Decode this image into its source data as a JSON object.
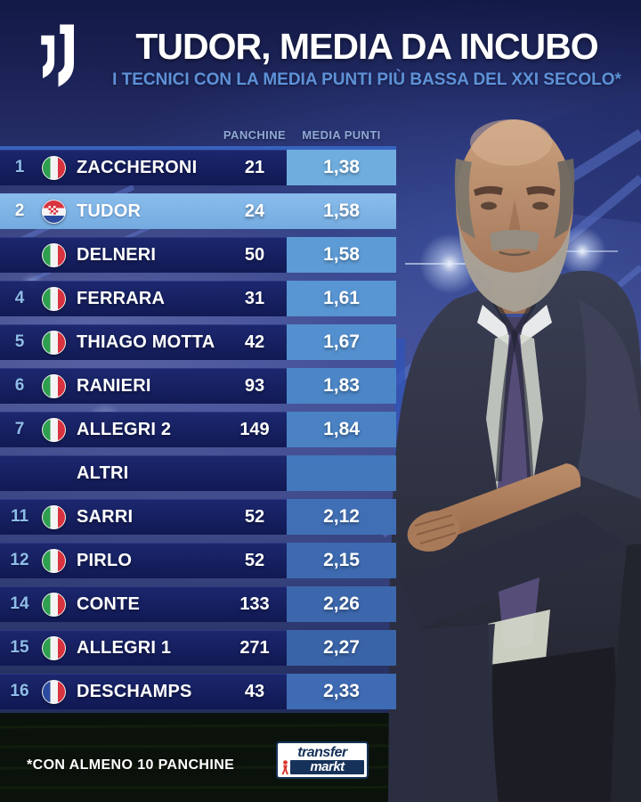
{
  "header": {
    "title": "TUDOR, MEDIA DA INCUBO",
    "subtitle": "I TECNICI CON LA MEDIA PUNTI PIÙ BASSA DEL XXI SECOLO*",
    "club_logo": "juventus"
  },
  "table": {
    "columns": {
      "panchine": "PANCHINE",
      "media": "MEDIA PUNTI"
    },
    "rows": [
      {
        "rank": "1",
        "flag": "it",
        "name": "ZACCHERONI",
        "panchine": "21",
        "media": "1,38",
        "highlight": false,
        "strip": "#6FADDE"
      },
      {
        "rank": "2",
        "flag": "hr",
        "name": "TUDOR",
        "panchine": "24",
        "media": "1,58",
        "highlight": true,
        "strip": "#7DB3E6"
      },
      {
        "rank": "",
        "flag": "it",
        "name": "DELNERI",
        "panchine": "50",
        "media": "1,58",
        "highlight": false,
        "strip": "#5D9BD6"
      },
      {
        "rank": "4",
        "flag": "it",
        "name": "FERRARA",
        "panchine": "31",
        "media": "1,61",
        "highlight": false,
        "strip": "#5895D3"
      },
      {
        "rank": "5",
        "flag": "it",
        "name": "THIAGO MOTTA",
        "panchine": "42",
        "media": "1,67",
        "highlight": false,
        "strip": "#5490CF"
      },
      {
        "rank": "6",
        "flag": "it",
        "name": "RANIERI",
        "panchine": "93",
        "media": "1,83",
        "highlight": false,
        "strip": "#4C86C7"
      },
      {
        "rank": "7",
        "flag": "it",
        "name": "ALLEGRI 2",
        "panchine": "149",
        "media": "1,84",
        "highlight": false,
        "strip": "#4A82C4"
      },
      {
        "rank": "",
        "flag": null,
        "name": "ALTRI",
        "panchine": "",
        "media": "",
        "highlight": false,
        "separator": true,
        "strip": "#4478BD"
      },
      {
        "rank": "11",
        "flag": "it",
        "name": "SARRI",
        "panchine": "52",
        "media": "2,12",
        "highlight": false,
        "strip": "#416FB6"
      },
      {
        "rank": "12",
        "flag": "it",
        "name": "PIRLO",
        "panchine": "52",
        "media": "2,15",
        "highlight": false,
        "strip": "#3D6AB0"
      },
      {
        "rank": "14",
        "flag": "it",
        "name": "CONTE",
        "panchine": "133",
        "media": "2,26",
        "highlight": false,
        "strip": "#3C67AC"
      },
      {
        "rank": "15",
        "flag": "it",
        "name": "ALLEGRI 1",
        "panchine": "271",
        "media": "2,27",
        "highlight": false,
        "strip": "#3A64A8"
      },
      {
        "rank": "16",
        "flag": "fr",
        "name": "DESCHAMPS",
        "panchine": "43",
        "media": "2,33",
        "highlight": false,
        "strip": "#3E6BB3"
      }
    ]
  },
  "footer": {
    "note": "*CON ALMENO 10 PANCHINE",
    "brand_top": "transfer",
    "brand_bottom": "markt"
  },
  "colors": {
    "accent_highlight": "#7DB3E6",
    "row_navy": "#17215F",
    "subtitle_blue": "#5E92D8",
    "rank_blue": "#8FBDEA",
    "grass_dark": "#0B120B"
  }
}
